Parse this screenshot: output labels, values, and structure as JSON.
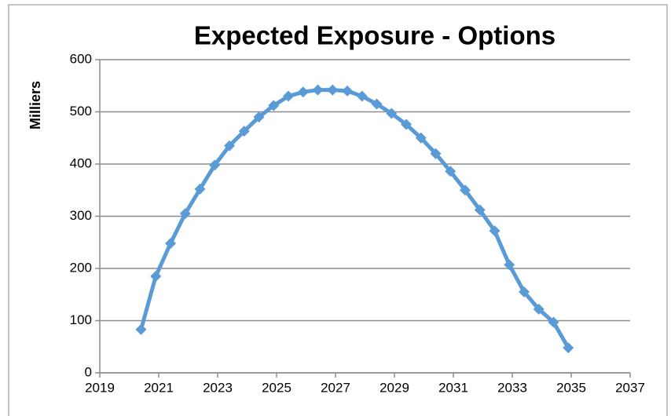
{
  "chart_data": {
    "type": "line",
    "title": "Expected Exposure - Options",
    "y_label": "Milliers",
    "x": [
      2020.4,
      2020.9,
      2021.4,
      2021.9,
      2022.4,
      2022.9,
      2023.4,
      2023.9,
      2024.4,
      2024.9,
      2025.4,
      2025.9,
      2026.4,
      2026.9,
      2027.4,
      2027.9,
      2028.4,
      2028.9,
      2029.4,
      2029.9,
      2030.4,
      2030.9,
      2031.4,
      2031.9,
      2032.4,
      2032.9,
      2033.4,
      2033.9,
      2034.4,
      2034.9
    ],
    "series": [
      {
        "color": "#5b9bd5",
        "values": [
          83,
          185,
          248,
          305,
          352,
          398,
          435,
          463,
          490,
          512,
          530,
          538,
          542,
          542,
          540,
          530,
          515,
          497,
          476,
          450,
          420,
          386,
          350,
          312,
          272,
          207,
          155,
          122,
          97,
          48
        ]
      }
    ],
    "xlim": [
      2019,
      2037
    ],
    "xticks": [
      2019,
      2021,
      2023,
      2025,
      2027,
      2029,
      2031,
      2033,
      2035,
      2037
    ],
    "ylim": [
      0,
      600
    ],
    "yticks": [
      0,
      100,
      200,
      300,
      400,
      500,
      600
    ],
    "grid": true
  }
}
